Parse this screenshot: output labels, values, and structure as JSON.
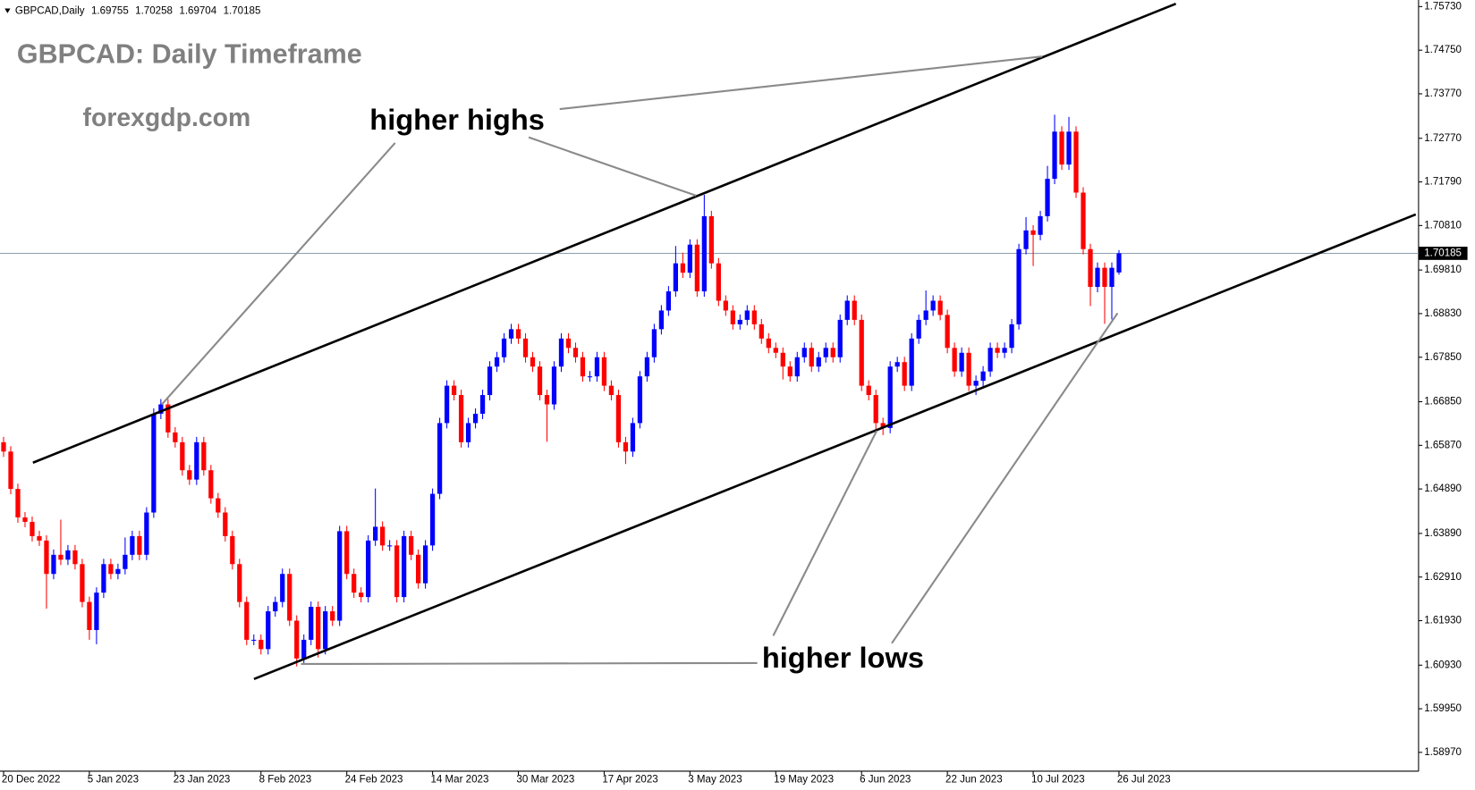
{
  "chart_data": {
    "type": "candlestick",
    "symbol": "GBPCAD,Daily",
    "title": "GBPCAD: Daily Timeframe",
    "watermark": "forexgdp.com",
    "annotations": [
      "higher highs",
      "higher lows"
    ],
    "colors": {
      "up": "#0000ff",
      "down": "#ff0000",
      "price_line": "#8c9fb0"
    },
    "xlim": [
      -0.5,
      197.9
    ],
    "ylim": [
      1.58547,
      1.75878
    ],
    "xticks": [
      {
        "value": 0,
        "label": "20 Dec 2022"
      },
      {
        "value": 12,
        "label": "5 Jan 2023"
      },
      {
        "value": 24,
        "label": "23 Jan 2023"
      },
      {
        "value": 36,
        "label": "8 Feb 2023"
      },
      {
        "value": 48,
        "label": "24 Feb 2023"
      },
      {
        "value": 60,
        "label": "14 Mar 2023"
      },
      {
        "value": 72,
        "label": "30 Mar 2023"
      },
      {
        "value": 84,
        "label": "17 Apr 2023"
      },
      {
        "value": 96,
        "label": "3 May 2023"
      },
      {
        "value": 108,
        "label": "19 May 2023"
      },
      {
        "value": 120,
        "label": "6 Jun 2023"
      },
      {
        "value": 132,
        "label": "22 Jun 2023"
      },
      {
        "value": 144,
        "label": "10 Jul 2023"
      },
      {
        "value": 156,
        "label": "26 Jul 2023"
      }
    ],
    "yticks": [
      {
        "value": 1.7573,
        "label": "1.75730"
      },
      {
        "value": 1.7475,
        "label": "1.74750"
      },
      {
        "value": 1.7377,
        "label": "1.73770"
      },
      {
        "value": 1.7277,
        "label": "1.72770"
      },
      {
        "value": 1.7179,
        "label": "1.71790"
      },
      {
        "value": 1.7081,
        "label": "1.70810"
      },
      {
        "value": 1.6981,
        "label": "1.69810"
      },
      {
        "value": 1.6883,
        "label": "1.68830"
      },
      {
        "value": 1.6785,
        "label": "1.67850"
      },
      {
        "value": 1.6685,
        "label": "1.66850"
      },
      {
        "value": 1.6587,
        "label": "1.65870"
      },
      {
        "value": 1.6489,
        "label": "1.64890"
      },
      {
        "value": 1.6389,
        "label": "1.63890"
      },
      {
        "value": 1.6291,
        "label": "1.62910"
      },
      {
        "value": 1.6193,
        "label": "1.61930"
      },
      {
        "value": 1.6093,
        "label": "1.60930"
      },
      {
        "value": 1.5995,
        "label": "1.59950"
      },
      {
        "value": 1.5897,
        "label": "1.58970"
      }
    ],
    "open": [
      1.6594,
      1.6573,
      1.6489,
      1.6425,
      1.6415,
      1.6383,
      1.6373,
      1.6298,
      1.6341,
      1.633,
      1.6351,
      1.632,
      1.6235,
      1.6172,
      1.6256,
      1.632,
      1.6298,
      1.6309,
      1.6341,
      1.6383,
      1.6341,
      1.6436,
      1.6658,
      1.6679,
      1.6616,
      1.6594,
      1.6531,
      1.651,
      1.6594,
      1.6531,
      1.6468,
      1.6436,
      1.6383,
      1.632,
      1.6235,
      1.615,
      1.615,
      1.6129,
      1.6214,
      1.6235,
      1.6298,
      1.6193,
      1.6108,
      1.615,
      1.6224,
      1.6129,
      1.6214,
      1.6193,
      1.6394,
      1.6298,
      1.6256,
      1.6246,
      1.6373,
      1.6404,
      1.6362,
      1.6362,
      1.6246,
      1.6383,
      1.6341,
      1.6277,
      1.6362,
      1.6478,
      1.6637,
      1.6721,
      1.67,
      1.6594,
      1.6637,
      1.6658,
      1.67,
      1.6764,
      1.6785,
      1.6827,
      1.6848,
      1.6827,
      1.6785,
      1.6764,
      1.67,
      1.6679,
      1.6764,
      1.6827,
      1.6806,
      1.6785,
      1.6742,
      1.6742,
      1.6785,
      1.6721,
      1.67,
      1.6594,
      1.6573,
      1.6637,
      1.6742,
      1.6785,
      1.6848,
      1.689,
      1.6933,
      1.6996,
      1.6975,
      1.7038,
      1.6933,
      1.7102,
      1.6996,
      1.6912,
      1.689,
      1.6859,
      1.6869,
      1.689,
      1.6859,
      1.6827,
      1.6806,
      1.6795,
      1.6764,
      1.6742,
      1.6785,
      1.6806,
      1.6764,
      1.6785,
      1.6806,
      1.6785,
      1.6869,
      1.6912,
      1.6869,
      1.6721,
      1.67,
      1.6637,
      1.6626,
      1.6764,
      1.6774,
      1.6721,
      1.6827,
      1.6869,
      1.689,
      1.6912,
      1.688,
      1.6806,
      1.6753,
      1.6795,
      1.6721,
      1.6732,
      1.6753,
      1.6806,
      1.6795,
      1.6806,
      1.6859,
      1.7028,
      1.707,
      1.706,
      1.7102,
      1.7186,
      1.7292,
      1.7218,
      1.7292,
      1.7155,
      1.7028,
      1.6943,
      1.6986,
      1.6943,
      1.69755
    ],
    "high": [
      1.6606,
      1.6585,
      1.6501,
      1.6437,
      1.6427,
      1.6395,
      1.6385,
      1.6353,
      1.642,
      1.6363,
      1.6363,
      1.6332,
      1.6247,
      1.6268,
      1.6332,
      1.6332,
      1.6321,
      1.638,
      1.6395,
      1.6395,
      1.6448,
      1.667,
      1.6691,
      1.6691,
      1.6628,
      1.6606,
      1.6543,
      1.6606,
      1.6606,
      1.6543,
      1.648,
      1.6448,
      1.6395,
      1.6332,
      1.6247,
      1.6162,
      1.6162,
      1.6226,
      1.6247,
      1.631,
      1.631,
      1.6205,
      1.6162,
      1.6236,
      1.6236,
      1.6226,
      1.6226,
      1.6406,
      1.6406,
      1.631,
      1.6268,
      1.6385,
      1.649,
      1.6416,
      1.6374,
      1.6374,
      1.6395,
      1.6395,
      1.6353,
      1.6374,
      1.649,
      1.6649,
      1.6733,
      1.6733,
      1.6712,
      1.6649,
      1.667,
      1.6712,
      1.6776,
      1.6797,
      1.6839,
      1.686,
      1.686,
      1.6839,
      1.6797,
      1.6776,
      1.6712,
      1.6776,
      1.6839,
      1.6839,
      1.6818,
      1.6797,
      1.6754,
      1.6797,
      1.6797,
      1.6733,
      1.6712,
      1.6606,
      1.6649,
      1.6754,
      1.6797,
      1.686,
      1.6902,
      1.6945,
      1.7035,
      1.702,
      1.705,
      1.705,
      1.715,
      1.7114,
      1.7008,
      1.6924,
      1.6902,
      1.6881,
      1.6902,
      1.6902,
      1.6871,
      1.6839,
      1.6818,
      1.6807,
      1.6776,
      1.6797,
      1.6818,
      1.6818,
      1.6797,
      1.6818,
      1.6818,
      1.6881,
      1.6924,
      1.6924,
      1.6881,
      1.6733,
      1.6712,
      1.6649,
      1.6776,
      1.6786,
      1.6786,
      1.6839,
      1.6881,
      1.6935,
      1.6924,
      1.6924,
      1.6892,
      1.6818,
      1.6807,
      1.6807,
      1.6744,
      1.6765,
      1.6818,
      1.6818,
      1.6818,
      1.6871,
      1.704,
      1.71,
      1.7082,
      1.7114,
      1.7215,
      1.733,
      1.7304,
      1.7325,
      1.7304,
      1.7167,
      1.704,
      1.6998,
      1.6998,
      1.6998,
      1.70258
    ],
    "low": [
      1.6561,
      1.6477,
      1.6413,
      1.6403,
      1.6371,
      1.6361,
      1.622,
      1.6286,
      1.6318,
      1.6318,
      1.6308,
      1.6223,
      1.615,
      1.614,
      1.6244,
      1.6286,
      1.6286,
      1.6297,
      1.6329,
      1.6329,
      1.6329,
      1.6424,
      1.6646,
      1.6604,
      1.6582,
      1.6519,
      1.6498,
      1.6498,
      1.6519,
      1.6456,
      1.6424,
      1.6371,
      1.6308,
      1.6223,
      1.6138,
      1.6138,
      1.6117,
      1.6117,
      1.6202,
      1.6223,
      1.6181,
      1.609,
      1.6096,
      1.6138,
      1.611,
      1.6117,
      1.6181,
      1.6181,
      1.6286,
      1.6244,
      1.6234,
      1.6234,
      1.6361,
      1.635,
      1.635,
      1.6234,
      1.6234,
      1.6329,
      1.6265,
      1.6265,
      1.635,
      1.6466,
      1.6625,
      1.6688,
      1.6582,
      1.6582,
      1.6625,
      1.6646,
      1.6688,
      1.6752,
      1.6773,
      1.6815,
      1.6815,
      1.6773,
      1.6752,
      1.6688,
      1.6595,
      1.6667,
      1.6752,
      1.6794,
      1.6773,
      1.673,
      1.673,
      1.673,
      1.6709,
      1.6688,
      1.6582,
      1.6545,
      1.6561,
      1.6625,
      1.673,
      1.6773,
      1.6836,
      1.6878,
      1.6921,
      1.6963,
      1.6963,
      1.6921,
      1.6921,
      1.6984,
      1.69,
      1.6878,
      1.6847,
      1.6847,
      1.6857,
      1.6847,
      1.6815,
      1.6794,
      1.6783,
      1.6735,
      1.673,
      1.673,
      1.6773,
      1.6752,
      1.6752,
      1.6773,
      1.6773,
      1.6773,
      1.6857,
      1.6857,
      1.6709,
      1.6688,
      1.662,
      1.661,
      1.6614,
      1.6752,
      1.6709,
      1.6709,
      1.6815,
      1.6857,
      1.6878,
      1.6868,
      1.6794,
      1.6741,
      1.6741,
      1.6709,
      1.67,
      1.6715,
      1.6741,
      1.6783,
      1.6783,
      1.6794,
      1.6847,
      1.7016,
      1.699,
      1.7048,
      1.709,
      1.7174,
      1.7206,
      1.7206,
      1.7143,
      1.7016,
      1.69,
      1.6931,
      1.686,
      1.687,
      1.69704
    ],
    "close": [
      1.6573,
      1.6489,
      1.6425,
      1.6415,
      1.6383,
      1.6373,
      1.6298,
      1.6341,
      1.633,
      1.6351,
      1.632,
      1.6235,
      1.6172,
      1.6256,
      1.632,
      1.6298,
      1.6309,
      1.6341,
      1.6383,
      1.6341,
      1.6436,
      1.6658,
      1.6679,
      1.6616,
      1.6594,
      1.6531,
      1.651,
      1.6594,
      1.6531,
      1.6468,
      1.6436,
      1.6383,
      1.632,
      1.6235,
      1.615,
      1.615,
      1.6129,
      1.6214,
      1.6235,
      1.6298,
      1.6193,
      1.6108,
      1.615,
      1.6224,
      1.6129,
      1.6214,
      1.6193,
      1.6394,
      1.6298,
      1.6256,
      1.6246,
      1.6373,
      1.6404,
      1.6362,
      1.6362,
      1.6246,
      1.6383,
      1.6341,
      1.6277,
      1.6362,
      1.6478,
      1.6637,
      1.6721,
      1.67,
      1.6594,
      1.6637,
      1.6658,
      1.67,
      1.6764,
      1.6785,
      1.6827,
      1.6848,
      1.6827,
      1.6785,
      1.6764,
      1.67,
      1.6679,
      1.6764,
      1.6827,
      1.6806,
      1.6785,
      1.6742,
      1.6742,
      1.6785,
      1.6721,
      1.67,
      1.6594,
      1.6573,
      1.6637,
      1.6742,
      1.6785,
      1.6848,
      1.689,
      1.6933,
      1.6996,
      1.6975,
      1.7038,
      1.6933,
      1.7102,
      1.6996,
      1.6912,
      1.689,
      1.6859,
      1.6869,
      1.689,
      1.6859,
      1.6827,
      1.6806,
      1.6795,
      1.6764,
      1.6742,
      1.6785,
      1.6806,
      1.6764,
      1.6785,
      1.6806,
      1.6785,
      1.6869,
      1.6912,
      1.6869,
      1.6721,
      1.67,
      1.6637,
      1.6626,
      1.6764,
      1.6774,
      1.6721,
      1.6827,
      1.6869,
      1.689,
      1.6912,
      1.688,
      1.6806,
      1.6753,
      1.6795,
      1.6721,
      1.6732,
      1.6753,
      1.6806,
      1.6795,
      1.6806,
      1.6859,
      1.7028,
      1.707,
      1.706,
      1.7102,
      1.7186,
      1.7292,
      1.7218,
      1.7292,
      1.7155,
      1.7028,
      1.6943,
      1.6986,
      1.6943,
      1.6986,
      1.70185
    ]
  }
}
